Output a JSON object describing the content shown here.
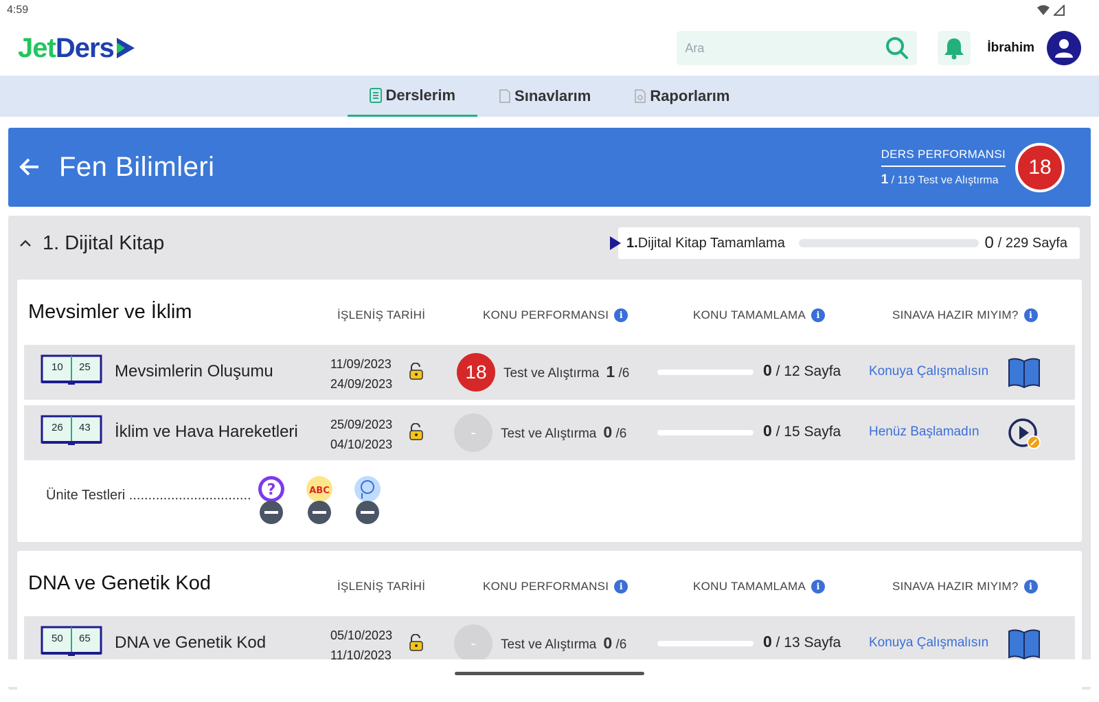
{
  "status_bar": {
    "time": "4:59"
  },
  "header": {
    "logo_jet": "Jet",
    "logo_ders": "Ders",
    "search_placeholder": "Ara",
    "username": "İbrahim"
  },
  "tabs": [
    {
      "label": "Derslerim",
      "active": true
    },
    {
      "label": "Sınavlarım",
      "active": false
    },
    {
      "label": "Raporlarım",
      "active": false
    }
  ],
  "course": {
    "title": "Fen Bilimleri",
    "performance_label": "DERS PERFORMANSI",
    "performance_done": "1",
    "performance_total": "119 Test ve Alıştırma",
    "performance_score": "18"
  },
  "book": {
    "title": "1. Dijital Kitap",
    "completion_label": "1.",
    "completion_text": "Dijital Kitap Tamamlama",
    "completion_done": "0",
    "completion_total": "229 Sayfa",
    "completion_fraction": 0
  },
  "columns": {
    "date": "İŞLENİŞ TARİHİ",
    "perf": "KONU PERFORMANSI",
    "completion": "KONU TAMAMLAMA",
    "ready": "SINAVA HAZIR MIYIM?"
  },
  "units": [
    {
      "title": "Mevsimler ve İklim",
      "topics": [
        {
          "page_start": "10",
          "page_end": "25",
          "name": "Mevsimlerin Oluşumu",
          "date_start": "11/09/2023",
          "date_end": "24/09/2023",
          "score": "18",
          "test_label": "Test ve Alıştırma",
          "tests_done": "1",
          "tests_total": "/6",
          "pages_done": "0",
          "pages_total": "/ 12 Sayfa",
          "status": "Konuya Çalışmalısın",
          "status_icon": "book-icon"
        },
        {
          "page_start": "26",
          "page_end": "43",
          "name": "İklim ve Hava Hareketleri",
          "date_start": "25/09/2023",
          "date_end": "04/10/2023",
          "score": "-",
          "test_label": "Test ve Alıştırma",
          "tests_done": "0",
          "tests_total": "/6",
          "pages_done": "0",
          "pages_total": "/ 15 Sayfa",
          "status": "Henüz Başlamadın",
          "status_icon": "play-icon"
        }
      ],
      "unit_tests_label": "Ünite Testleri ................................"
    },
    {
      "title": "DNA ve Genetik Kod",
      "topics": [
        {
          "page_start": "50",
          "page_end": "65",
          "name": "DNA ve Genetik Kod",
          "date_start": "05/10/2023",
          "date_end": "11/10/2023",
          "score": "-",
          "test_label": "Test ve Alıştırma",
          "tests_done": "0",
          "tests_total": "/6",
          "pages_done": "0",
          "pages_total": "/ 13 Sayfa",
          "status": "Konuya Çalışmalısın",
          "status_icon": "book-icon"
        }
      ]
    }
  ],
  "colors": {
    "brand_green": "#22c55e",
    "brand_blue": "#1e40af",
    "hero_blue": "#3b78d8",
    "score_red": "#d62828",
    "link_blue": "#3b6fd6"
  }
}
